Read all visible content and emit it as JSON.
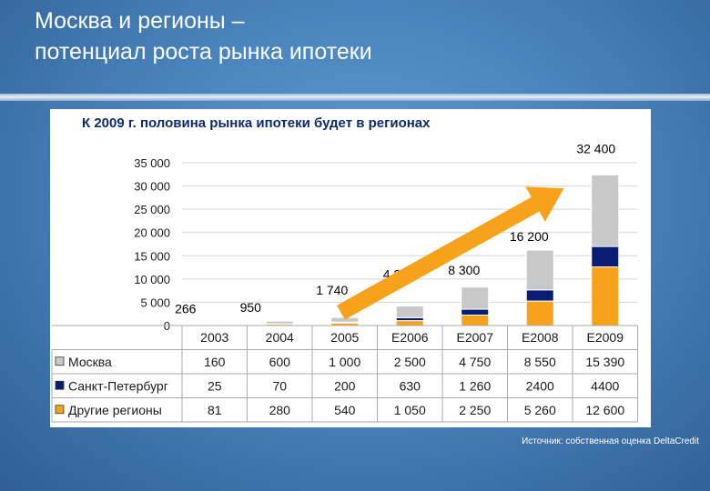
{
  "title_lines": [
    "Москва и регионы –",
    "потенциал роста рынка ипотеки"
  ],
  "subtitle": "К 2009 г. половина рынка ипотеки будет в регионах",
  "source_note": "Источник: собственная оценка DeltaCredit",
  "colors": {
    "moscow": "#c8c8c8",
    "spb": "#0b1d73",
    "regions": "#f7a21b",
    "arrow": "#f7a21b",
    "title": "#ffffff",
    "subtitle": "#0c2a6b"
  },
  "chart_data": {
    "type": "bar",
    "stacked": true,
    "title": "К 2009 г. половина рынка ипотеки будет в регионах",
    "categories": [
      "2003",
      "2004",
      "2005",
      "E2006",
      "E2007",
      "E2008",
      "E2009"
    ],
    "series": [
      {
        "name": "Другие регионы",
        "values": [
          81,
          280,
          540,
          1050,
          2250,
          5260,
          12600
        ],
        "labels": [
          "81",
          "280",
          "540",
          "1 050",
          "2 250",
          "5 260",
          "12 600"
        ],
        "color": "#f7a21b"
      },
      {
        "name": "Санкт-Петербург",
        "values": [
          25,
          70,
          200,
          630,
          1260,
          2400,
          4400
        ],
        "labels": [
          "25",
          "70",
          "200",
          "630",
          "1 260",
          "2400",
          "4400"
        ],
        "color": "#0b1d73"
      },
      {
        "name": "Москва",
        "values": [
          160,
          600,
          1000,
          2500,
          4750,
          8550,
          15390
        ],
        "labels": [
          "160",
          "600",
          "1 000",
          "2 500",
          "4 750",
          "8 550",
          "15 390"
        ],
        "color": "#c8c8c8"
      }
    ],
    "totals": [
      "266",
      "950",
      "1 740",
      "4 200",
      "8 300",
      "16 200",
      "32 400"
    ],
    "table_row_order": [
      "Москва",
      "Санкт-Петербург",
      "Другие регионы"
    ],
    "y_ticks": [
      "0",
      "5 000",
      "10 000",
      "15 000",
      "20 000",
      "25 000",
      "30 000",
      "35 000"
    ],
    "ylim": [
      0,
      35000
    ],
    "grid": true,
    "legend_placement": "in-table-left",
    "annotation": "growth arrow from 2005 to 2009"
  }
}
